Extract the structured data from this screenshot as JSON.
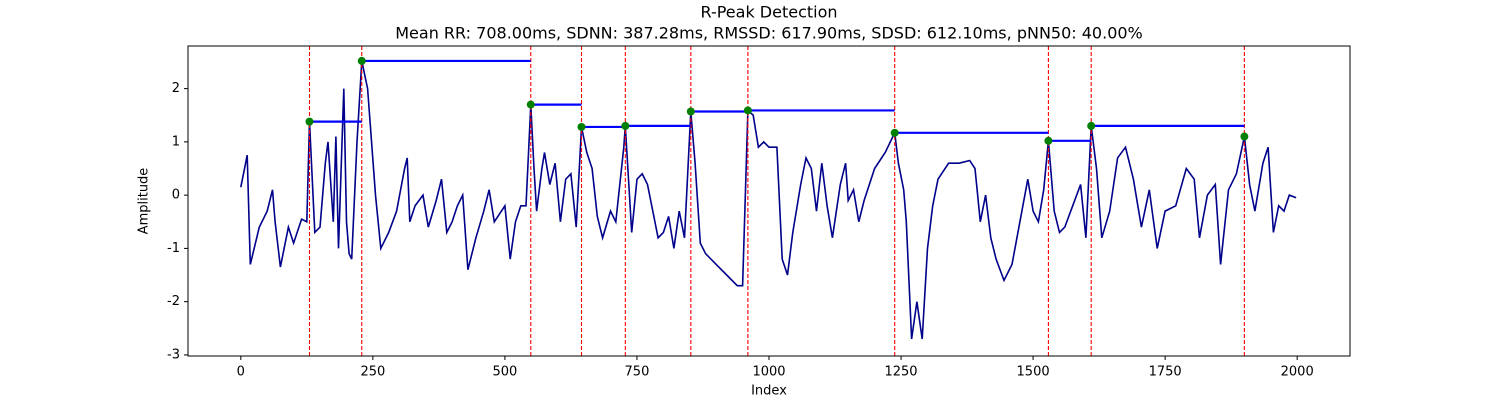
{
  "chart_data": {
    "type": "line",
    "title": "R-Peak Detection",
    "subtitle": "Mean RR: 708.00ms, SDNN: 387.28ms, RMSSD: 617.90ms, SDSD: 612.10ms, pNN50: 40.00%",
    "x_label": "Index",
    "y_label": "Amplitude",
    "color": "#00008b",
    "x": [
      0,
      12,
      18,
      35,
      50,
      60,
      65,
      75,
      90,
      100,
      115,
      125,
      130,
      140,
      150,
      160,
      165,
      175,
      180,
      185,
      195,
      200,
      205,
      210,
      220,
      229,
      240,
      255,
      265,
      280,
      295,
      310,
      315,
      320,
      330,
      345,
      355,
      370,
      380,
      390,
      400,
      410,
      420,
      430,
      445,
      460,
      470,
      480,
      500,
      510,
      520,
      530,
      540,
      549,
      555,
      560,
      570,
      575,
      585,
      595,
      605,
      615,
      625,
      635,
      645,
      655,
      665,
      675,
      685,
      700,
      710,
      725,
      728,
      740,
      750,
      760,
      770,
      780,
      790,
      800,
      810,
      820,
      830,
      840,
      852,
      860,
      870,
      880,
      900,
      920,
      940,
      950,
      960,
      970,
      980,
      990,
      1000,
      1015,
      1025,
      1035,
      1045,
      1060,
      1070,
      1080,
      1090,
      1100,
      1110,
      1120,
      1135,
      1145,
      1150,
      1160,
      1170,
      1180,
      1200,
      1220,
      1238,
      1245,
      1255,
      1260,
      1270,
      1280,
      1290,
      1300,
      1310,
      1320,
      1340,
      1360,
      1380,
      1390,
      1400,
      1410,
      1420,
      1430,
      1445,
      1460,
      1475,
      1490,
      1500,
      1510,
      1520,
      1529,
      1540,
      1550,
      1560,
      1575,
      1590,
      1600,
      1610,
      1620,
      1630,
      1645,
      1660,
      1675,
      1690,
      1705,
      1720,
      1735,
      1750,
      1770,
      1790,
      1805,
      1815,
      1830,
      1845,
      1855,
      1870,
      1885,
      1900,
      1910,
      1920,
      1935,
      1945,
      1955,
      1965,
      1975,
      1985,
      1998
    ],
    "values": [
      0.15,
      0.75,
      -1.3,
      -0.6,
      -0.3,
      0.1,
      -0.5,
      -1.35,
      -0.6,
      -0.9,
      -0.45,
      -0.5,
      1.38,
      -0.7,
      -0.6,
      0.6,
      1.0,
      -0.5,
      1.1,
      -1.0,
      2.0,
      -0.5,
      -1.1,
      -1.2,
      1.0,
      2.52,
      2.0,
      0.0,
      -1.0,
      -0.7,
      -0.3,
      0.5,
      0.7,
      -0.5,
      -0.2,
      0.0,
      -0.6,
      -0.1,
      0.3,
      -0.7,
      -0.5,
      -0.2,
      0.0,
      -1.4,
      -0.8,
      -0.3,
      0.1,
      -0.5,
      -0.2,
      -1.2,
      -0.5,
      -0.2,
      -0.2,
      1.7,
      0.5,
      -0.3,
      0.5,
      0.8,
      0.2,
      0.6,
      -0.5,
      0.3,
      0.4,
      -0.6,
      1.28,
      0.8,
      0.5,
      -0.4,
      -0.8,
      -0.3,
      -0.5,
      0.9,
      1.3,
      -0.7,
      0.3,
      0.4,
      0.2,
      -0.3,
      -0.8,
      -0.7,
      -0.4,
      -1.0,
      -0.3,
      -0.8,
      1.57,
      0.6,
      -0.9,
      -1.1,
      -1.3,
      -1.5,
      -1.7,
      -1.7,
      1.59,
      1.5,
      0.9,
      1.0,
      0.9,
      0.9,
      -1.2,
      -1.5,
      -0.7,
      0.2,
      0.7,
      0.5,
      -0.3,
      0.6,
      -0.2,
      -0.8,
      0.2,
      0.6,
      -0.1,
      0.1,
      -0.5,
      -0.1,
      0.5,
      0.8,
      1.17,
      0.6,
      0.1,
      -0.5,
      -2.7,
      -2.0,
      -2.7,
      -1.0,
      -0.2,
      0.3,
      0.6,
      0.6,
      0.65,
      0.5,
      -0.5,
      0.0,
      -0.8,
      -1.2,
      -1.6,
      -1.3,
      -0.5,
      0.3,
      -0.3,
      -0.5,
      0.1,
      1.02,
      -0.3,
      -0.7,
      -0.6,
      -0.2,
      0.2,
      -0.8,
      1.3,
      0.5,
      -0.8,
      -0.3,
      0.7,
      0.9,
      0.3,
      -0.6,
      0.1,
      -1.0,
      -0.3,
      -0.2,
      0.5,
      0.3,
      -0.8,
      0.0,
      0.2,
      -1.3,
      0.1,
      0.4,
      1.1,
      0.2,
      -0.3,
      0.6,
      0.9,
      -0.7,
      -0.2,
      -0.3,
      0.0,
      -0.05
    ],
    "peaks": {
      "x": [
        130,
        229,
        549,
        645,
        728,
        852,
        960,
        1238,
        1529,
        1610,
        1900
      ],
      "values": [
        1.38,
        2.52,
        1.7,
        1.28,
        1.3,
        1.57,
        1.59,
        1.17,
        1.02,
        1.3,
        1.1
      ],
      "marker_color": "#008000",
      "interval_color": "#0000ff",
      "line_color": "#ff0000"
    },
    "xlim": [
      -100,
      2100
    ],
    "ylim": [
      -3.02,
      2.8
    ],
    "xticks": [
      0,
      250,
      500,
      750,
      1000,
      1250,
      1500,
      1750,
      2000
    ],
    "yticks": [
      -3,
      -2,
      -1,
      0,
      1,
      2
    ]
  }
}
